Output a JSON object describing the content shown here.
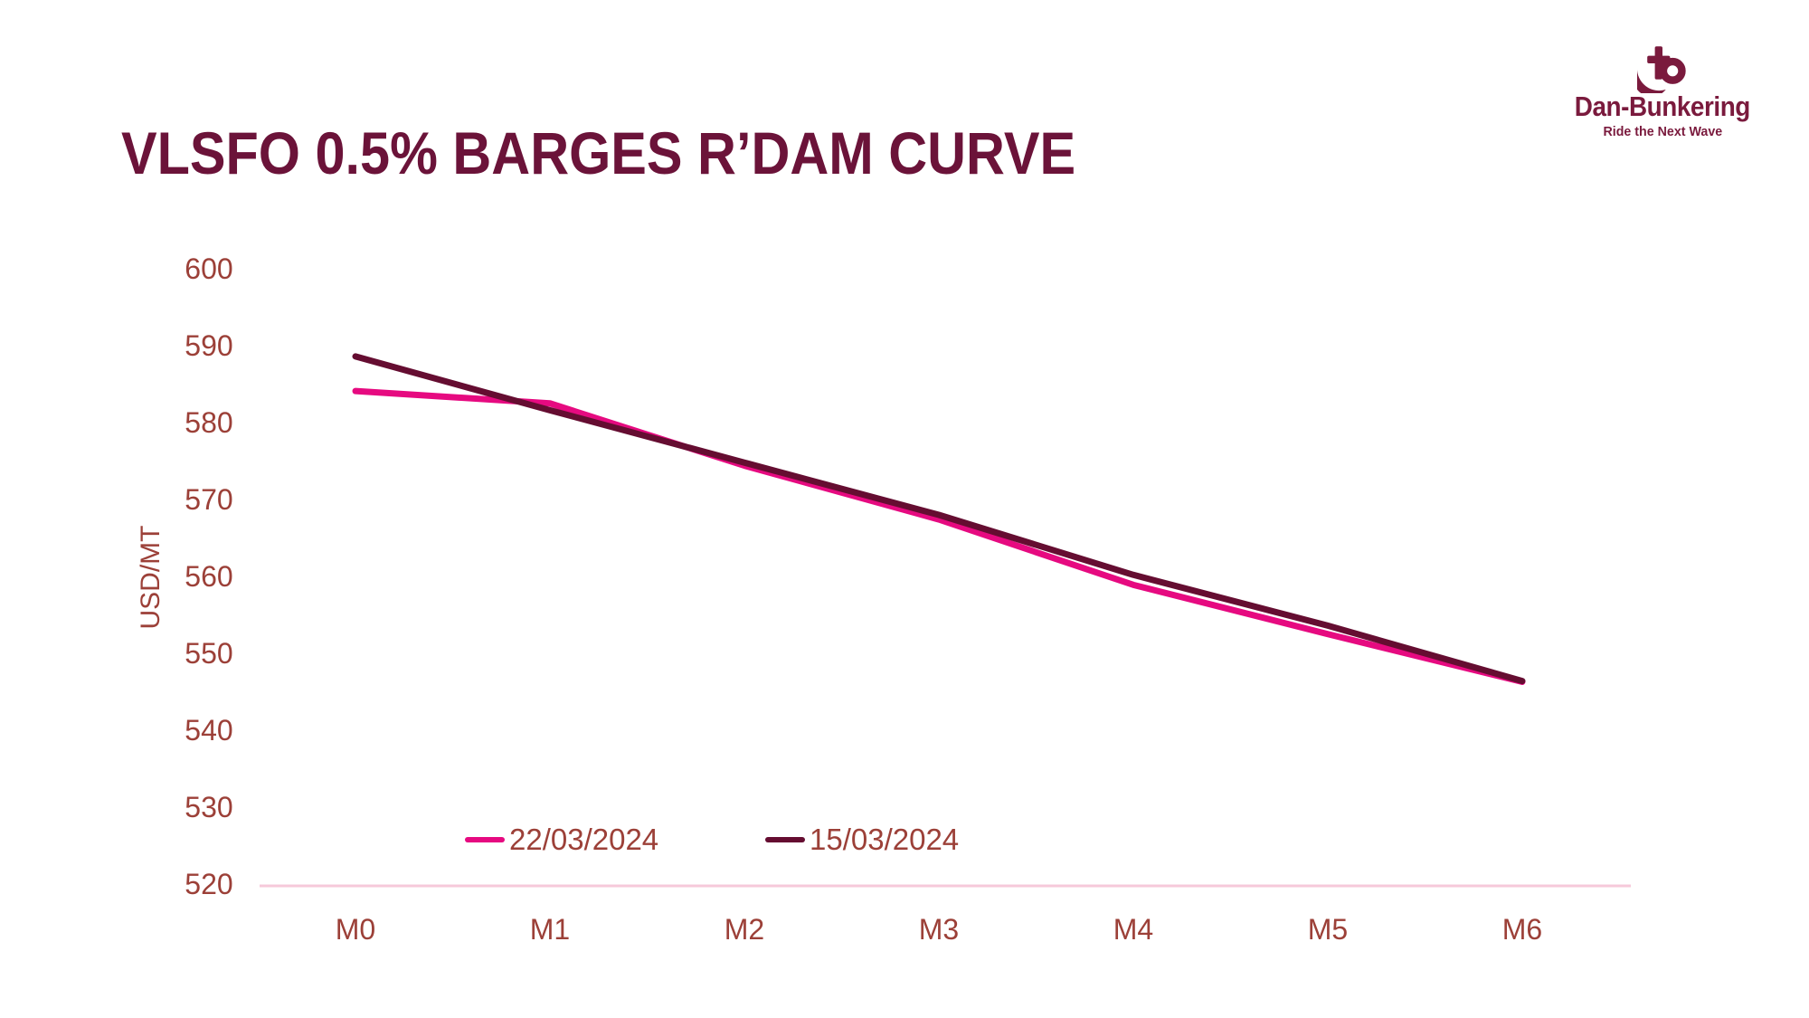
{
  "logo": {
    "name": "Dan-Bunkering",
    "tagline": "Ride the Next Wave",
    "icon": "anchor-b-mark"
  },
  "colors": {
    "title": "#6B1339",
    "axis_text": "#9C4038",
    "axis_line": "#F6C9DA",
    "logo": "#7A1A3D"
  },
  "chart_data": {
    "type": "line",
    "title": "VLSFO 0.5% BARGES R’DAM CURVE",
    "xlabel": "",
    "ylabel": "USD/MT",
    "categories": [
      "M0",
      "M1",
      "M2",
      "M3",
      "M4",
      "M5",
      "M6"
    ],
    "series": [
      {
        "name": "22/03/2024",
        "color": "#E60A80",
        "values": [
          584.1,
          582.5,
          574.4,
          567.4,
          558.9,
          552.5,
          546.3
        ]
      },
      {
        "name": "15/03/2024",
        "color": "#650D31",
        "values": [
          588.6,
          581.6,
          574.8,
          568.0,
          560.2,
          553.6,
          546.4
        ]
      }
    ],
    "ylim": [
      520,
      600
    ],
    "y_ticks": [
      520,
      530,
      540,
      550,
      560,
      570,
      580,
      590,
      600
    ],
    "grid": false,
    "legend_position": "bottom"
  }
}
